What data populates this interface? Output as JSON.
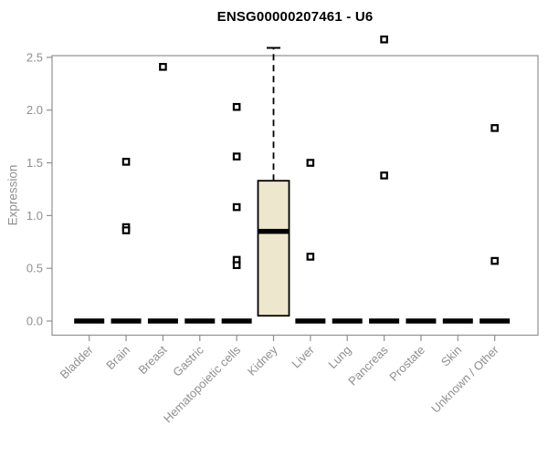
{
  "chart_data": {
    "type": "boxplot",
    "title": "ENSG00000207461 - U6",
    "ylabel": "Expression",
    "xlabel": "",
    "ylim": [
      -0.13,
      2.52
    ],
    "yticks": [
      0,
      0.5,
      1,
      1.5,
      2,
      2.5
    ],
    "grid": false,
    "legend": "none",
    "categories": [
      "Bladder",
      "Brain",
      "Breast",
      "Gastric",
      "Hematopoietic cells",
      "Kidney",
      "Liver",
      "Lung",
      "Pancreas",
      "Prostate",
      "Skin",
      "Unknown / Other"
    ],
    "series": [
      {
        "category": "Bladder",
        "median": 0,
        "outliers": []
      },
      {
        "category": "Brain",
        "median": 0,
        "outliers": [
          1.51,
          0.89,
          0.86
        ]
      },
      {
        "category": "Breast",
        "median": 0,
        "outliers": [
          2.41
        ]
      },
      {
        "category": "Gastric",
        "median": 0,
        "outliers": []
      },
      {
        "category": "Hematopoietic cells",
        "median": 0,
        "outliers": [
          2.03,
          1.56,
          1.08,
          0.58,
          0.53
        ]
      },
      {
        "category": "Kidney",
        "median": 0.85,
        "q1": 0.05,
        "q3": 1.33,
        "whisker_low": 0.05,
        "whisker_high": 2.59,
        "outliers": []
      },
      {
        "category": "Liver",
        "median": 0,
        "outliers": [
          1.5,
          0.61
        ]
      },
      {
        "category": "Lung",
        "median": 0,
        "outliers": []
      },
      {
        "category": "Pancreas",
        "median": 0,
        "outliers": [
          2.67,
          1.38
        ]
      },
      {
        "category": "Prostate",
        "median": 0,
        "outliers": []
      },
      {
        "category": "Skin",
        "median": 0,
        "outliers": []
      },
      {
        "category": "Unknown / Other",
        "median": 0,
        "outliers": [
          1.83,
          0.57
        ]
      }
    ],
    "colors": {
      "axis": "#8f8f8f",
      "tick_text": "#8f8f8f",
      "box_fill": "#EDE7CD",
      "box_stroke": "#000000",
      "median": "#000000",
      "outlier_fill": "#ffffff",
      "title_text": "#000000",
      "background": "#ffffff"
    }
  }
}
